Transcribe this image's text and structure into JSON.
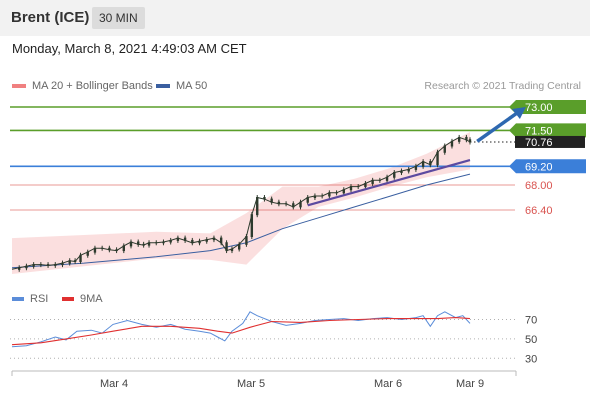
{
  "header": {
    "instrument": "Brent (ICE)",
    "interval": "30 MIN"
  },
  "datetime": "Monday, March 8, 2021 4:49:03 AM CET",
  "credit": "Research © 2021 Trading Central",
  "colors": {
    "up": "#5a9e2a",
    "neutral": "#3b7fd9",
    "down": "#d9534f",
    "candle": "#2d3a2d",
    "ma50": "#3a5fa0",
    "band": "#fad4d4",
    "trend": "#5c4aa0",
    "current": "#222222"
  },
  "legend": {
    "main": [
      {
        "label": "MA 20 + Bollinger Bands",
        "color": "#f08080"
      },
      {
        "label": "MA 50",
        "color": "#3a5fa0"
      }
    ],
    "rsi": [
      {
        "label": "RSI",
        "color": "#5b8dd9"
      },
      {
        "label": "9MA",
        "color": "#e03030"
      }
    ]
  },
  "chart_data": [
    {
      "type": "line",
      "name": "price",
      "x_ticks": [
        "Mar 4",
        "Mar 5",
        "Mar 6",
        "Mar 9"
      ],
      "levels": [
        {
          "label": "73.00",
          "value": 73.0,
          "kind": "resistance"
        },
        {
          "label": "71.50",
          "value": 71.5,
          "kind": "resistance"
        },
        {
          "label": "70.76",
          "value": 70.76,
          "kind": "current"
        },
        {
          "label": "69.20",
          "value": 69.2,
          "kind": "pivot"
        },
        {
          "label": "68.00",
          "value": 68.0,
          "kind": "support"
        },
        {
          "label": "66.40",
          "value": 66.4,
          "kind": "support"
        }
      ],
      "price": [
        [
          0,
          62.6
        ],
        [
          4,
          62.7
        ],
        [
          8,
          62.8
        ],
        [
          12,
          62.9
        ],
        [
          16,
          62.9
        ],
        [
          20,
          62.85
        ],
        [
          24,
          62.9
        ],
        [
          28,
          63.0
        ],
        [
          32,
          63.15
        ],
        [
          35,
          63.1
        ],
        [
          38,
          63.5
        ],
        [
          42,
          63.7
        ],
        [
          46,
          63.95
        ],
        [
          50,
          63.95
        ],
        [
          54,
          63.85
        ],
        [
          58,
          63.8
        ],
        [
          62,
          64.1
        ],
        [
          66,
          64.35
        ],
        [
          70,
          64.2
        ],
        [
          73,
          64.15
        ],
        [
          76,
          64.3
        ],
        [
          80,
          64.3
        ],
        [
          84,
          64.35
        ],
        [
          88,
          64.45
        ],
        [
          92,
          64.6
        ],
        [
          96,
          64.45
        ],
        [
          100,
          64.3
        ],
        [
          104,
          64.4
        ],
        [
          108,
          64.5
        ],
        [
          112,
          64.6
        ],
        [
          116,
          64.3
        ],
        [
          119,
          63.8
        ],
        [
          122,
          63.9
        ],
        [
          126,
          64.2
        ],
        [
          130,
          64.7
        ],
        [
          133,
          66.1
        ],
        [
          136,
          67.2
        ],
        [
          140,
          67.1
        ],
        [
          144,
          66.9
        ],
        [
          148,
          66.8
        ],
        [
          152,
          66.8
        ],
        [
          156,
          66.6
        ],
        [
          160,
          66.9
        ],
        [
          164,
          67.2
        ],
        [
          168,
          67.3
        ],
        [
          172,
          67.3
        ],
        [
          176,
          67.5
        ],
        [
          180,
          67.5
        ],
        [
          184,
          67.7
        ],
        [
          188,
          67.9
        ],
        [
          192,
          67.9
        ],
        [
          196,
          68.1
        ],
        [
          200,
          68.3
        ],
        [
          204,
          68.3
        ],
        [
          208,
          68.5
        ],
        [
          212,
          68.8
        ],
        [
          216,
          68.9
        ],
        [
          220,
          69.0
        ],
        [
          224,
          69.2
        ],
        [
          228,
          69.5
        ],
        [
          232,
          69.3
        ],
        [
          236,
          70.1
        ],
        [
          240,
          70.5
        ],
        [
          244,
          70.8
        ],
        [
          248,
          71.05
        ],
        [
          252,
          70.9
        ],
        [
          254,
          70.76
        ]
      ],
      "ma50": [
        [
          0,
          62.7
        ],
        [
          40,
          63.0
        ],
        [
          80,
          63.4
        ],
        [
          110,
          63.8
        ],
        [
          130,
          64.3
        ],
        [
          150,
          65.2
        ],
        [
          170,
          65.9
        ],
        [
          190,
          66.6
        ],
        [
          210,
          67.3
        ],
        [
          230,
          68.0
        ],
        [
          254,
          68.7
        ]
      ],
      "bollinger": {
        "upper": [
          [
            0,
            64.6
          ],
          [
            40,
            64.8
          ],
          [
            80,
            65.0
          ],
          [
            110,
            64.9
          ],
          [
            130,
            66.2
          ],
          [
            150,
            67.9
          ],
          [
            170,
            67.9
          ],
          [
            190,
            68.4
          ],
          [
            210,
            69.1
          ],
          [
            230,
            70.0
          ],
          [
            254,
            71.4
          ]
        ],
        "lower": [
          [
            0,
            62.3
          ],
          [
            40,
            62.8
          ],
          [
            80,
            63.3
          ],
          [
            110,
            63.2
          ],
          [
            130,
            62.9
          ],
          [
            150,
            65.2
          ],
          [
            170,
            66.6
          ],
          [
            190,
            67.2
          ],
          [
            210,
            67.9
          ],
          [
            230,
            68.5
          ],
          [
            254,
            69.0
          ]
        ]
      },
      "trendline": [
        [
          164,
          66.7
        ],
        [
          254,
          69.6
        ]
      ],
      "arrow": [
        [
          258,
          70.8
        ],
        [
          285,
          73.0
        ]
      ]
    },
    {
      "type": "line",
      "name": "rsi",
      "y_ticks": [
        70,
        50,
        30
      ],
      "ylim": [
        20,
        85
      ],
      "rsi": [
        [
          0,
          42
        ],
        [
          8,
          43
        ],
        [
          16,
          47
        ],
        [
          24,
          52
        ],
        [
          30,
          49
        ],
        [
          36,
          58
        ],
        [
          44,
          59
        ],
        [
          50,
          56
        ],
        [
          56,
          65
        ],
        [
          64,
          69
        ],
        [
          72,
          65
        ],
        [
          80,
          62
        ],
        [
          88,
          65
        ],
        [
          96,
          60
        ],
        [
          104,
          58
        ],
        [
          110,
          56
        ],
        [
          114,
          52
        ],
        [
          118,
          48
        ],
        [
          122,
          58
        ],
        [
          128,
          66
        ],
        [
          132,
          78
        ],
        [
          136,
          74
        ],
        [
          144,
          68
        ],
        [
          152,
          64
        ],
        [
          160,
          66
        ],
        [
          168,
          69
        ],
        [
          176,
          70
        ],
        [
          184,
          71
        ],
        [
          192,
          69
        ],
        [
          200,
          71
        ],
        [
          208,
          72
        ],
        [
          216,
          70
        ],
        [
          224,
          72
        ],
        [
          228,
          74
        ],
        [
          232,
          63
        ],
        [
          236,
          74
        ],
        [
          240,
          78
        ],
        [
          246,
          72
        ],
        [
          250,
          74
        ],
        [
          254,
          66
        ]
      ],
      "ma9": [
        [
          0,
          44
        ],
        [
          16,
          46
        ],
        [
          30,
          50
        ],
        [
          44,
          54
        ],
        [
          56,
          58
        ],
        [
          72,
          63
        ],
        [
          88,
          63
        ],
        [
          104,
          61
        ],
        [
          114,
          58
        ],
        [
          122,
          56
        ],
        [
          132,
          62
        ],
        [
          144,
          68
        ],
        [
          160,
          67
        ],
        [
          176,
          69
        ],
        [
          192,
          70
        ],
        [
          208,
          71
        ],
        [
          224,
          71
        ],
        [
          236,
          71
        ],
        [
          246,
          72
        ],
        [
          254,
          71
        ]
      ]
    }
  ]
}
